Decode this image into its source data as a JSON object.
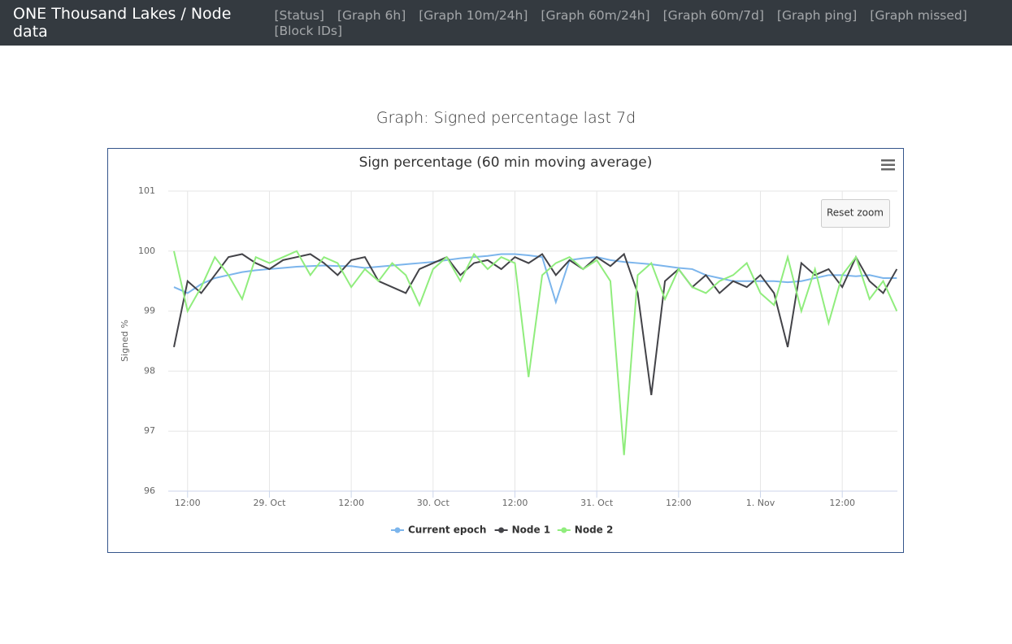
{
  "navbar": {
    "brand": "ONE Thousand Lakes / Node data",
    "links": [
      "[Status]",
      "[Graph 6h]",
      "[Graph 10m/24h]",
      "[Graph 60m/24h]",
      "[Graph 60m/7d]",
      "[Graph ping]",
      "[Graph missed]",
      "[Block IDs]"
    ]
  },
  "heading": "Graph: Signed percentage last 7d",
  "chart_data": {
    "type": "line",
    "title": "Sign percentage (60 min moving average)",
    "y_label": "Signed %",
    "reset_zoom": "Reset zoom",
    "x": [
      "10-28T10:00",
      "10-28T12:00",
      "10-28T14:00",
      "10-28T16:00",
      "10-28T18:00",
      "10-28T20:00",
      "10-28T22:00",
      "10-29T00:00",
      "10-29T02:00",
      "10-29T04:00",
      "10-29T06:00",
      "10-29T08:00",
      "10-29T10:00",
      "10-29T12:00",
      "10-29T14:00",
      "10-29T16:00",
      "10-29T18:00",
      "10-29T20:00",
      "10-29T22:00",
      "10-30T00:00",
      "10-30T02:00",
      "10-30T04:00",
      "10-30T06:00",
      "10-30T08:00",
      "10-30T10:00",
      "10-30T12:00",
      "10-30T14:00",
      "10-30T16:00",
      "10-30T18:00",
      "10-30T20:00",
      "10-30T22:00",
      "10-31T00:00",
      "10-31T02:00",
      "10-31T04:00",
      "10-31T06:00",
      "10-31T08:00",
      "10-31T10:00",
      "10-31T12:00",
      "10-31T14:00",
      "10-31T16:00",
      "10-31T18:00",
      "10-31T20:00",
      "10-31T22:00",
      "11-01T00:00",
      "11-01T02:00",
      "11-01T04:00",
      "11-01T06:00",
      "11-01T08:00",
      "11-01T10:00",
      "11-01T12:00",
      "11-01T14:00",
      "11-01T16:00",
      "11-01T18:00",
      "11-01T20:00"
    ],
    "xlim": [
      "10-28T09:10",
      "11-01T20:05"
    ],
    "xticks": [
      {
        "value": "10-28T12:00",
        "label": "12:00"
      },
      {
        "value": "10-29T00:00",
        "label": "29. Oct"
      },
      {
        "value": "10-29T12:00",
        "label": "12:00"
      },
      {
        "value": "10-30T00:00",
        "label": "30. Oct"
      },
      {
        "value": "10-30T12:00",
        "label": "12:00"
      },
      {
        "value": "10-31T00:00",
        "label": "31. Oct"
      },
      {
        "value": "10-31T12:00",
        "label": "12:00"
      },
      {
        "value": "11-01T00:00",
        "label": "1. Nov"
      },
      {
        "value": "11-01T12:00",
        "label": "12:00"
      }
    ],
    "ylim": [
      96,
      101
    ],
    "yticks": [
      96,
      97,
      98,
      99,
      100,
      101
    ],
    "grid": true,
    "series": [
      {
        "name": "Current epoch",
        "color": "#7cb5ec",
        "values": [
          99.4,
          99.3,
          99.45,
          99.55,
          99.6,
          99.65,
          99.68,
          99.7,
          99.72,
          99.74,
          99.75,
          99.76,
          99.75,
          99.75,
          99.72,
          99.74,
          99.76,
          99.78,
          99.8,
          99.82,
          99.85,
          99.88,
          99.9,
          99.92,
          99.95,
          99.95,
          99.93,
          99.9,
          99.15,
          99.85,
          99.88,
          99.9,
          99.85,
          99.82,
          99.8,
          99.78,
          99.75,
          99.72,
          99.7,
          99.6,
          99.55,
          99.5,
          99.5,
          99.5,
          99.5,
          99.48,
          99.5,
          99.55,
          99.6,
          99.6,
          99.58,
          99.6,
          99.55,
          99.55
        ]
      },
      {
        "name": "Node 1",
        "color": "#434348",
        "values": [
          98.4,
          99.5,
          99.3,
          99.6,
          99.9,
          99.95,
          99.8,
          99.7,
          99.85,
          99.9,
          99.95,
          99.8,
          99.6,
          99.85,
          99.9,
          99.5,
          99.4,
          99.3,
          99.7,
          99.8,
          99.9,
          99.6,
          99.8,
          99.85,
          99.7,
          99.9,
          99.8,
          99.95,
          99.6,
          99.85,
          99.7,
          99.9,
          99.75,
          99.95,
          99.3,
          97.6,
          99.5,
          99.7,
          99.4,
          99.6,
          99.3,
          99.5,
          99.4,
          99.6,
          99.3,
          98.4,
          99.8,
          99.6,
          99.7,
          99.4,
          99.9,
          99.5,
          99.3,
          99.7
        ]
      },
      {
        "name": "Node 2",
        "color": "#90ed7d",
        "values": [
          100,
          99.0,
          99.4,
          99.9,
          99.6,
          99.2,
          99.9,
          99.8,
          99.9,
          100,
          99.6,
          99.9,
          99.8,
          99.4,
          99.7,
          99.5,
          99.8,
          99.6,
          99.1,
          99.7,
          99.9,
          99.5,
          99.95,
          99.7,
          99.9,
          99.8,
          97.9,
          99.6,
          99.8,
          99.9,
          99.7,
          99.85,
          99.5,
          96.6,
          99.6,
          99.8,
          99.2,
          99.7,
          99.4,
          99.3,
          99.5,
          99.6,
          99.8,
          99.3,
          99.1,
          99.9,
          99.0,
          99.7,
          98.8,
          99.6,
          99.9,
          99.2,
          99.5,
          99.0
        ]
      }
    ]
  }
}
